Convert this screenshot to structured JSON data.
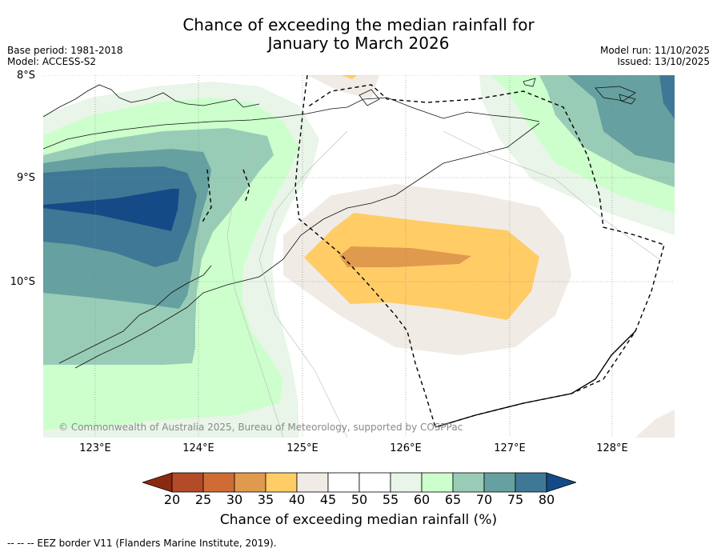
{
  "title": {
    "line1": "Chance of exceeding the median rainfall for",
    "line2": "January to March 2026"
  },
  "meta": {
    "base_period": "Base period: 1981-2018",
    "model": "Model: ACCESS-S2",
    "model_run": "Model run: 11/10/2025",
    "issued": "Issued: 13/10/2025"
  },
  "axes": {
    "lat_labels": [
      "8°S",
      "9°S",
      "10°S"
    ],
    "lon_labels": [
      "123°E",
      "124°E",
      "125°E",
      "126°E",
      "127°E",
      "128°E"
    ]
  },
  "copyright": "© Commonwealth of Australia 2025, Bureau of Meteorology, supported by COSPPac",
  "colorbar": {
    "title": "Chance of exceeding median rainfall (%)",
    "ticks": [
      "20",
      "25",
      "30",
      "35",
      "40",
      "45",
      "50",
      "55",
      "60",
      "65",
      "70",
      "75",
      "80"
    ],
    "colors": [
      "#8b2a12",
      "#b34a28",
      "#cf6c36",
      "#e09a4e",
      "#ffcc66",
      "#f0ebe5",
      "#ffffff",
      "#ffffff",
      "#e8f5e8",
      "#ccffcc",
      "#99ccb6",
      "#66a0a0",
      "#3f7896",
      "#144b86"
    ]
  },
  "footnote": "-- -- -- EEZ border V11 (Flanders Marine Institute, 2019)."
}
